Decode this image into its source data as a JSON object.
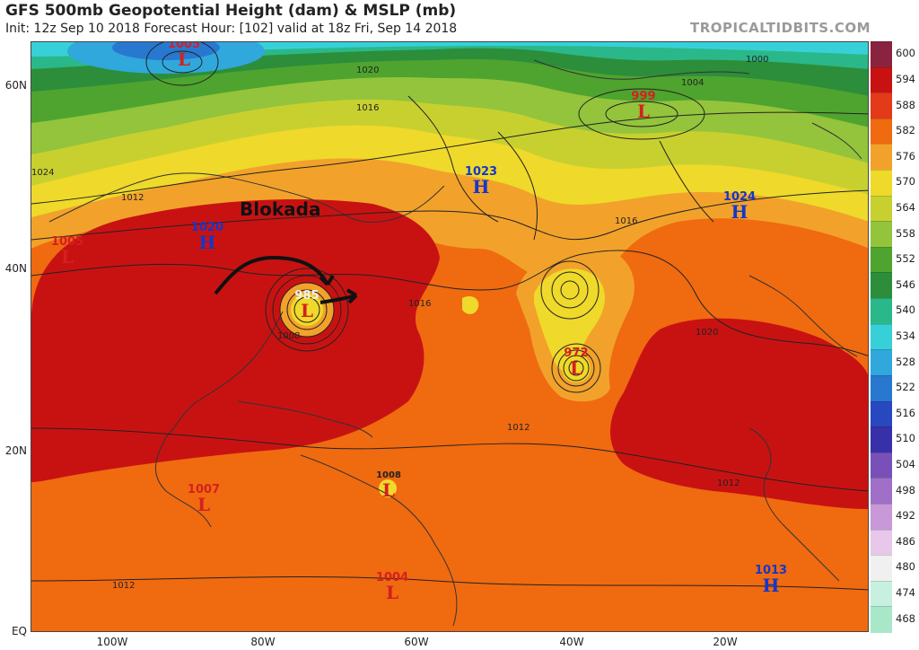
{
  "header": {
    "title": "GFS 500mb Geopotential Height (dam) & MSLP (mb)",
    "subtitle": "Init: 12z Sep 10 2018   Forecast Hour: [102]   valid at 18z Fri, Sep 14 2018",
    "brand": "TROPICALTIDBITS.COM"
  },
  "axes": {
    "lat_labels": [
      "60N",
      "40N",
      "20N",
      "EQ"
    ],
    "lon_labels": [
      "100W",
      "80W",
      "60W",
      "40W",
      "20W"
    ]
  },
  "annotation": {
    "text": "Blokada"
  },
  "colorbar": {
    "labels": [
      "600",
      "594",
      "588",
      "582",
      "576",
      "570",
      "564",
      "558",
      "552",
      "546",
      "540",
      "534",
      "528",
      "522",
      "516",
      "510",
      "504",
      "498",
      "492",
      "486",
      "480",
      "474",
      "468"
    ],
    "colors": [
      "#8a2340",
      "#c81212",
      "#e33a1a",
      "#f06a10",
      "#f2a22a",
      "#efd92a",
      "#c8d030",
      "#93c43c",
      "#4ea42e",
      "#2c8e3a",
      "#2ab88a",
      "#38d0d8",
      "#30a8dc",
      "#2878d0",
      "#2848c0",
      "#3830a8",
      "#7850b8",
      "#a070c8",
      "#c898d8",
      "#e8c8ea",
      "#f0f0f0",
      "#c8f0e0",
      "#a8e8c8"
    ]
  },
  "pressure_systems": [
    {
      "type": "L",
      "value": "1005"
    },
    {
      "type": "L",
      "value": "999"
    },
    {
      "type": "H",
      "value": "1023"
    },
    {
      "type": "H",
      "value": "1024"
    },
    {
      "type": "H",
      "value": "1020"
    },
    {
      "type": "L",
      "value": "1005"
    },
    {
      "type": "L",
      "value": "985"
    },
    {
      "type": "L",
      "value": "972"
    },
    {
      "type": "L",
      "value": "1008"
    },
    {
      "type": "L",
      "value": "1007"
    },
    {
      "type": "L",
      "value": "1004"
    },
    {
      "type": "H",
      "value": "1013"
    }
  ],
  "isobar_labels": [
    "1020",
    "1016",
    "1012",
    "1008",
    "1004",
    "1000",
    "1024"
  ],
  "colors": {
    "low": "#d42020",
    "high": "#1636c8"
  }
}
